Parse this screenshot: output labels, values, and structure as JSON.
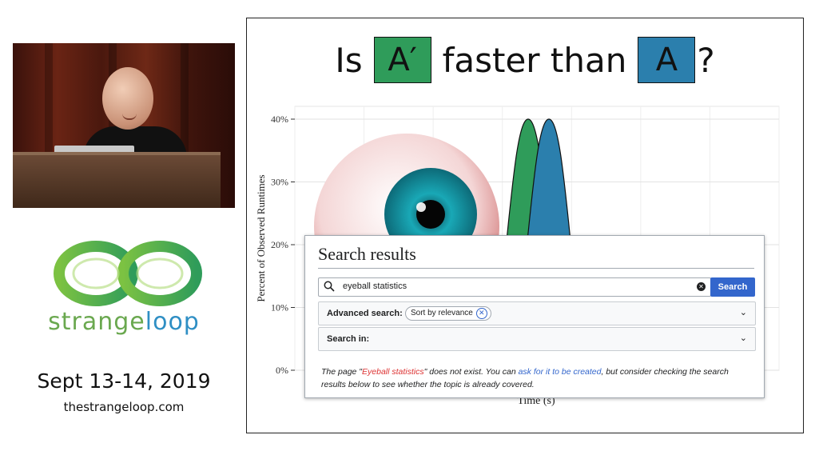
{
  "logo": {
    "word_left": "strange",
    "word_right": "loop",
    "green": "#6aa84f",
    "blue": "#2f8fc4"
  },
  "conference": {
    "dates": "Sept 13-14, 2019",
    "site": "thestrangeloop.com"
  },
  "slide": {
    "title_prefix": "Is",
    "box_a_prime": "A′",
    "title_mid": "faster than",
    "box_a": "A",
    "title_suffix": "?"
  },
  "chart_data": {
    "type": "area",
    "ylabel": "Percent of Observed Runtimes",
    "xlabel": "Time (s)",
    "yticks": [
      "0%",
      "10%",
      "20%",
      "30%",
      "40%"
    ],
    "ylim": [
      0,
      40
    ],
    "series": [
      {
        "color": "#2f9c5a",
        "peak": 40
      },
      {
        "color": "#2b7fad",
        "peak": 40
      }
    ]
  },
  "search": {
    "heading": "Search results",
    "query": "eyeball statistics",
    "button": "Search",
    "advanced_label": "Advanced search:",
    "chip": "Sort by relevance",
    "search_in": "Search in:",
    "message_1": "The page \"",
    "message_missing": "Eyeball statistics",
    "message_2": "\" does not exist. You can ",
    "message_link": "ask for it to be created",
    "message_3": ", but consider checking the search results below to see whether the topic is already covered."
  }
}
